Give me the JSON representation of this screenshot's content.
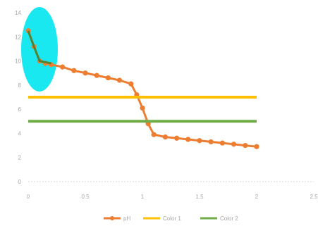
{
  "chart_data": {
    "type": "line",
    "title": "",
    "xlabel": "",
    "ylabel": "",
    "xlim": [
      0,
      2.5
    ],
    "ylim": [
      0,
      14
    ],
    "x_ticks": [
      0,
      0.5,
      1,
      1.5,
      2,
      2.5
    ],
    "x_tick_labels": [
      "0",
      "0.5",
      "1",
      "1.5",
      "2",
      "2.5"
    ],
    "y_ticks": [
      0,
      2,
      4,
      6,
      8,
      10,
      12,
      14
    ],
    "y_tick_labels": [
      "0",
      "2",
      "4",
      "6",
      "8",
      "10",
      "12",
      "14"
    ],
    "grid": false,
    "legend_position": "bottom",
    "highlight": {
      "shape": "ellipse",
      "color": "#00e5ef",
      "around": "first data points"
    },
    "series": [
      {
        "name": "pH",
        "color": "#ed7d31",
        "marker": "circle",
        "x": [
          0,
          0.05,
          0.1,
          0.15,
          0.2,
          0.3,
          0.4,
          0.5,
          0.6,
          0.7,
          0.8,
          0.9,
          0.95,
          1.0,
          1.05,
          1.1,
          1.2,
          1.3,
          1.4,
          1.5,
          1.6,
          1.7,
          1.8,
          1.9,
          2.0
        ],
        "values": [
          12.5,
          11.2,
          10.0,
          9.8,
          9.7,
          9.5,
          9.2,
          9.0,
          8.8,
          8.6,
          8.4,
          8.1,
          7.2,
          6.1,
          4.8,
          3.9,
          3.7,
          3.6,
          3.5,
          3.4,
          3.3,
          3.2,
          3.1,
          3.0,
          2.9
        ]
      },
      {
        "name": "Color 1",
        "color": "#ffc000",
        "marker": "none",
        "x": [
          0,
          2.0
        ],
        "values": [
          7.0,
          7.0
        ]
      },
      {
        "name": "Color 2",
        "color": "#70ad47",
        "marker": "none",
        "x": [
          0,
          2.0
        ],
        "values": [
          5.0,
          5.0
        ]
      }
    ],
    "overlay_line": {
      "color": "#548235",
      "x": [
        0,
        0.05,
        0.1,
        0.2
      ],
      "values": [
        12.5,
        11.2,
        10.0,
        9.8
      ]
    }
  }
}
